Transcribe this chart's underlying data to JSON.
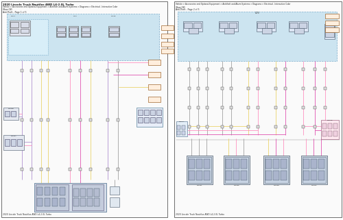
{
  "page_bg": "#ffffff",
  "outer_bg": "#f0f0f0",
  "diagram_bg": "#fafafa",
  "light_blue_bg": "#cce4f0",
  "border_color": "#666666",
  "dashed_border": "#7aadcc",
  "wire_colors": {
    "purple": "#aa88cc",
    "yellow": "#e8d060",
    "pink": "#ff88bb",
    "magenta": "#dd44aa",
    "gray": "#999999",
    "dark": "#333333",
    "green": "#44aa66",
    "orange": "#ff8800",
    "red": "#cc2222",
    "blue": "#4466cc",
    "tan": "#ccaa77",
    "light_blue": "#66aacc",
    "black": "#222222"
  },
  "left_page": {
    "title_line1": "2020 Lincoln Truck Nautilus AWD L4-2.0L Turbo",
    "title_line2": "Vehicle > Accessories and Optional Equipment > Antitheft and Alarm Systems > Diagrams > Electrical - Interactive Color",
    "title_line3": "(Base Off)",
    "title_line4": "Anti-Theft - Page 1 of 5",
    "footer": "2020 Lincoln Truck Nautilus AWD L4-2.0L Turbo"
  },
  "right_page": {
    "title_line1": "Vehicle > Accessories and Optional Equipment > Antitheft and Alarm Systems > Diagrams > Electrical - Interactive Color",
    "title_line2": "(Base Off)",
    "title_line3": "Anti-Theft - Page 2 of 5",
    "footer": "2020 Lincoln Truck Nautilus AWD L4-2.0L Turbo"
  }
}
